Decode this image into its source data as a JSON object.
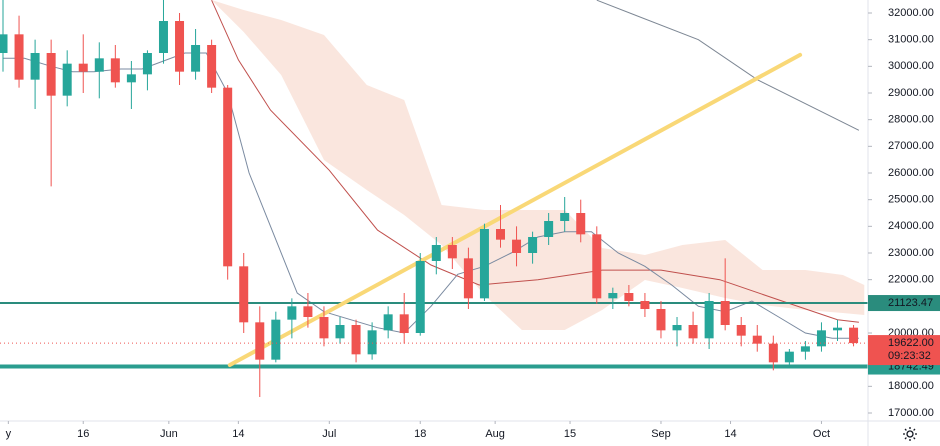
{
  "chart_data": {
    "type": "candlestick",
    "up_color": "#26a69a",
    "down_color": "#ef5350",
    "xlim": [
      -0.56,
      161.7
    ],
    "ylim": [
      16700,
      32487.5
    ],
    "x": [
      0,
      3,
      6,
      9,
      12,
      15,
      18,
      21,
      24,
      27,
      30,
      33,
      36,
      39,
      42,
      45,
      48,
      51,
      54,
      57,
      60,
      63,
      66,
      69,
      72,
      75,
      78,
      81,
      84,
      87,
      90,
      93,
      96,
      99,
      102,
      105,
      108,
      111,
      114,
      117,
      120,
      123,
      126,
      129,
      132,
      135,
      138,
      141,
      144,
      147,
      150,
      153,
      156,
      159
    ],
    "open": [
      30500,
      31200,
      29500,
      30500,
      28900,
      30100,
      29800,
      30300,
      29400,
      29700,
      30500,
      31700,
      29800,
      30800,
      29200,
      22500,
      20400,
      19000,
      20500,
      21000,
      20600,
      19800,
      20300,
      19200,
      20100,
      20700,
      20000,
      22700,
      23300,
      22800,
      21300,
      23900,
      23500,
      23000,
      23600,
      24200,
      24500,
      23700,
      21300,
      21500,
      21200,
      20900,
      20100,
      20300,
      19800,
      21200,
      20300,
      19900,
      19600,
      18900,
      19300,
      19500,
      20100,
      20200
    ],
    "high": [
      32500,
      31900,
      31000,
      31000,
      30600,
      31200,
      30900,
      30800,
      30200,
      30600,
      32500,
      32000,
      31400,
      31000,
      29300,
      23000,
      21000,
      20800,
      21300,
      21500,
      21000,
      20600,
      20500,
      20400,
      21000,
      21500,
      23000,
      23600,
      23600,
      23200,
      24100,
      24800,
      24000,
      23800,
      24500,
      25100,
      25000,
      24000,
      21700,
      21800,
      21500,
      21200,
      20600,
      20800,
      21500,
      22800,
      20600,
      20300,
      19900,
      19400,
      19700,
      20400,
      20500,
      20300
    ],
    "low": [
      29800,
      29200,
      28400,
      25500,
      28500,
      29000,
      28800,
      29200,
      28400,
      29100,
      30100,
      29300,
      29500,
      29000,
      22000,
      20000,
      17600,
      18900,
      19800,
      20200,
      19500,
      19600,
      18900,
      19000,
      19800,
      19600,
      19900,
      22200,
      22400,
      20900,
      21200,
      23200,
      22500,
      22600,
      23300,
      23800,
      23400,
      21100,
      20900,
      21000,
      20600,
      19800,
      19500,
      19600,
      19400,
      20100,
      19500,
      19300,
      18600,
      18800,
      19000,
      19300,
      19700,
      19500
    ],
    "close": [
      31200,
      29500,
      30500,
      28900,
      30100,
      29800,
      30300,
      29400,
      29700,
      30500,
      31700,
      29800,
      30800,
      29200,
      22500,
      20400,
      19000,
      20500,
      21000,
      20600,
      19800,
      20300,
      19200,
      20100,
      20700,
      20000,
      22700,
      23300,
      22800,
      21300,
      23900,
      23500,
      23000,
      23600,
      24200,
      24500,
      23700,
      21300,
      21500,
      21200,
      20900,
      20100,
      20300,
      19800,
      21200,
      20300,
      19900,
      19600,
      18900,
      19300,
      19500,
      20100,
      20200,
      19622
    ],
    "xticks": [
      {
        "value": 1,
        "label": "y"
      },
      {
        "value": 15,
        "label": "16"
      },
      {
        "value": 31,
        "label": "Jun"
      },
      {
        "value": 44,
        "label": "14"
      },
      {
        "value": 61,
        "label": "Jul"
      },
      {
        "value": 78,
        "label": "18"
      },
      {
        "value": 92,
        "label": "Aug"
      },
      {
        "value": 106,
        "label": "15"
      },
      {
        "value": 123,
        "label": "Sep"
      },
      {
        "value": 136,
        "label": "14"
      },
      {
        "value": 153,
        "label": "Oct"
      }
    ],
    "yticks": [
      {
        "value": 32000,
        "label": "32000.00"
      },
      {
        "value": 31000,
        "label": "31000.00"
      },
      {
        "value": 30000,
        "label": "30000.00"
      },
      {
        "value": 29000,
        "label": "29000.00"
      },
      {
        "value": 28000,
        "label": "28000.00"
      },
      {
        "value": 27000,
        "label": "27000.00"
      },
      {
        "value": 26000,
        "label": "26000.00"
      },
      {
        "value": 25000,
        "label": "25000.00"
      },
      {
        "value": 24000,
        "label": "24000.00"
      },
      {
        "value": 23000,
        "label": "23000.00"
      },
      {
        "value": 22000,
        "label": "22000.00"
      },
      {
        "value": 21000,
        "label": "21000.00"
      },
      {
        "value": 20000,
        "label": "20000.00"
      },
      {
        "value": 19000,
        "label": "19000.00"
      },
      {
        "value": 18000,
        "label": "18000.00"
      },
      {
        "value": 17000,
        "label": "17000.00"
      }
    ],
    "cloud": {
      "color": "#f4c7b5",
      "x": [
        39,
        45,
        52,
        60,
        68,
        75,
        82,
        90,
        97,
        105,
        112,
        120,
        127,
        135,
        142,
        150,
        157,
        161
      ],
      "upper": [
        32488,
        32113,
        31738,
        31175,
        29300,
        28738,
        24800,
        24613,
        24613,
        24613,
        23188,
        22925,
        23300,
        23488,
        22363,
        22363,
        22175,
        21800
      ],
      "lower": [
        32488,
        31288,
        29675,
        26488,
        25363,
        24425,
        23300,
        21425,
        20113,
        20113,
        20863,
        21988,
        21688,
        21313,
        21050,
        20863,
        20750,
        20675
      ]
    },
    "lines": [
      {
        "color": "#c0504d",
        "x": [
          39,
          44,
          50,
          61,
          70,
          80,
          89,
          100,
          112,
          123,
          134,
          145,
          156,
          160
        ],
        "values": [
          32480,
          30240,
          28360,
          26100,
          23860,
          22550,
          21800,
          22000,
          22360,
          22360,
          22000,
          21240,
          20500,
          20400
        ]
      },
      {
        "color": "#7d8794",
        "x": [
          111,
          130,
          141,
          160
        ],
        "values": [
          32480,
          31000,
          29500,
          27600
        ]
      },
      {
        "color": "#7a8aa0",
        "x": [
          0,
          4,
          9,
          13,
          17,
          22,
          26,
          30,
          34,
          38,
          42,
          46,
          50,
          55,
          60,
          65,
          70,
          75,
          80,
          85,
          90,
          95,
          100,
          105,
          110,
          115,
          120,
          125,
          130,
          135,
          140,
          145,
          150,
          155,
          160
        ],
        "values": [
          30300,
          30300,
          30000,
          29800,
          29800,
          29900,
          29900,
          30200,
          30500,
          30500,
          29000,
          26000,
          24000,
          21500,
          20800,
          20500,
          20200,
          20000,
          21000,
          22200,
          22500,
          23000,
          23600,
          23800,
          23800,
          23000,
          22500,
          21800,
          21000,
          20800,
          21200,
          20600,
          20000,
          19800,
          19800
        ]
      }
    ],
    "trendline": {
      "color": "#f9d877",
      "x": [
        42.4,
        149
      ],
      "values": [
        18800,
        30430
      ]
    },
    "levels": [
      {
        "value": 21123.47,
        "color": "#2a8c7d",
        "width": 2
      },
      {
        "value": 18742.49,
        "color": "#2a9d8f",
        "width": 4
      }
    ],
    "last_price": {
      "value": 19622,
      "label": "19622.00",
      "countdown": "09:23:32",
      "color": "#ef5350"
    }
  }
}
